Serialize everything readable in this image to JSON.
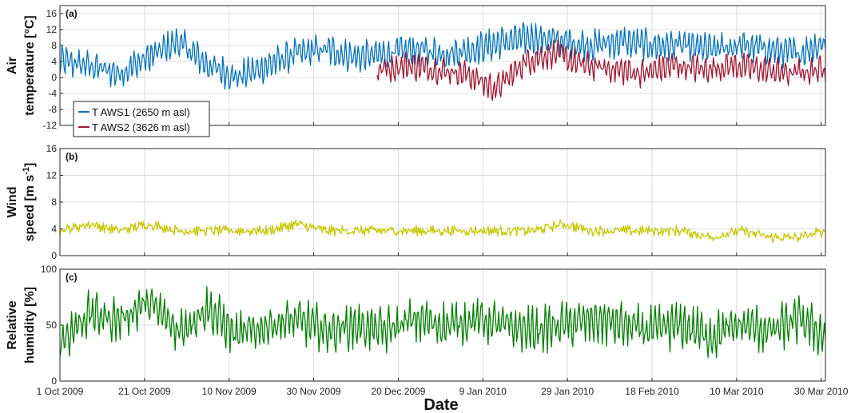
{
  "chart_data": [
    {
      "type": "line",
      "panel_label": "(a)",
      "ylabel": [
        "Air",
        "temperature [°C]"
      ],
      "ylim": [
        -12,
        18
      ],
      "yticks": [
        -12,
        -8,
        -4,
        0,
        4,
        8,
        12,
        16
      ],
      "grid": true,
      "legend_position": "bottom-left",
      "series": [
        {
          "name": "T AWS1 (2650 m asl)",
          "color": "#0072BD",
          "x": [
            "2009-10-01",
            "2009-10-08",
            "2009-10-15",
            "2009-10-22",
            "2009-10-29",
            "2009-11-05",
            "2009-11-12",
            "2009-11-19",
            "2009-11-26",
            "2009-12-03",
            "2009-12-10",
            "2009-12-17",
            "2009-12-24",
            "2009-12-31",
            "2010-01-07",
            "2010-01-14",
            "2010-01-21",
            "2010-01-28",
            "2010-02-04",
            "2010-02-11",
            "2010-02-18",
            "2010-02-25",
            "2010-03-04",
            "2010-03-11",
            "2010-03-18",
            "2010-03-25",
            "2010-03-31"
          ],
          "values": [
            4,
            3,
            1,
            5,
            9,
            3,
            0,
            3,
            6,
            7,
            5,
            6,
            7,
            6,
            7,
            9,
            10,
            9,
            8,
            9,
            8,
            8,
            7,
            8,
            7,
            6,
            9
          ]
        },
        {
          "name": "T AWS2 (3626 m asl)",
          "color": "#A2142F",
          "x": [
            "2009-12-15",
            "2009-12-22",
            "2009-12-29",
            "2010-01-05",
            "2010-01-12",
            "2010-01-19",
            "2010-01-26",
            "2010-02-02",
            "2010-02-09",
            "2010-02-16",
            "2010-02-23",
            "2010-03-02",
            "2010-03-09",
            "2010-03-16",
            "2010-03-23",
            "2010-03-31"
          ],
          "values": [
            2,
            3,
            2,
            1,
            -3,
            4,
            6,
            3,
            2,
            1,
            3,
            2,
            3,
            2,
            1,
            2
          ]
        }
      ]
    },
    {
      "type": "line",
      "panel_label": "(b)",
      "ylabel": [
        "Wind",
        "speed [m s",
        "-1",
        "]"
      ],
      "ylim": [
        0,
        16
      ],
      "yticks": [
        0,
        4,
        8,
        12,
        16
      ],
      "grid": true,
      "series": [
        {
          "color": "#C8C800",
          "x": [
            "2009-10-01",
            "2009-10-08",
            "2009-10-15",
            "2009-10-22",
            "2009-10-29",
            "2009-11-05",
            "2009-11-12",
            "2009-11-19",
            "2009-11-26",
            "2009-12-03",
            "2009-12-10",
            "2009-12-17",
            "2009-12-24",
            "2009-12-31",
            "2010-01-07",
            "2010-01-14",
            "2010-01-21",
            "2010-01-28",
            "2010-02-04",
            "2010-02-11",
            "2010-02-18",
            "2010-02-25",
            "2010-03-04",
            "2010-03-11",
            "2010-03-18",
            "2010-03-25",
            "2010-03-31"
          ],
          "values": [
            3,
            4,
            3,
            4,
            3,
            3,
            3,
            3,
            4,
            3,
            3,
            3,
            3,
            3,
            3,
            3,
            3,
            4,
            3,
            3,
            3,
            3,
            2,
            3,
            2,
            2,
            3
          ]
        }
      ]
    },
    {
      "type": "line",
      "panel_label": "(c)",
      "ylabel": [
        "Relative",
        "humidity [%]"
      ],
      "ylim": [
        0,
        100
      ],
      "yticks": [
        0,
        50,
        100
      ],
      "grid": true,
      "series": [
        {
          "color": "#008000",
          "x": [
            "2009-10-01",
            "2009-10-08",
            "2009-10-15",
            "2009-10-22",
            "2009-10-29",
            "2009-11-05",
            "2009-11-12",
            "2009-11-19",
            "2009-11-26",
            "2009-12-03",
            "2009-12-10",
            "2009-12-17",
            "2009-12-24",
            "2009-12-31",
            "2010-01-07",
            "2010-01-14",
            "2010-01-21",
            "2010-01-28",
            "2010-02-04",
            "2010-02-11",
            "2010-02-18",
            "2010-02-25",
            "2010-03-04",
            "2010-03-11",
            "2010-03-18",
            "2010-03-25",
            "2010-03-31"
          ],
          "values": [
            35,
            60,
            55,
            70,
            45,
            65,
            40,
            50,
            55,
            45,
            50,
            45,
            55,
            50,
            55,
            50,
            45,
            50,
            55,
            50,
            45,
            50,
            40,
            50,
            45,
            55,
            40
          ]
        }
      ]
    }
  ],
  "x_axis": {
    "label": "Date",
    "range": [
      "2009-10-01",
      "2010-03-31"
    ],
    "ticks": [
      {
        "date": "2009-10-01",
        "label": "1 Oct 2009"
      },
      {
        "date": "2009-10-21",
        "label": "21 Oct 2009"
      },
      {
        "date": "2009-11-10",
        "label": "10 Nov 2009"
      },
      {
        "date": "2009-11-30",
        "label": "30 Nov 2009"
      },
      {
        "date": "2009-12-20",
        "label": "20 Dec 2009"
      },
      {
        "date": "2010-01-09",
        "label": "9 Jan 2010"
      },
      {
        "date": "2010-01-29",
        "label": "29 Jan 2010"
      },
      {
        "date": "2010-02-18",
        "label": "18 Feb 2010"
      },
      {
        "date": "2010-03-10",
        "label": "10 Mar 2010"
      },
      {
        "date": "2010-03-30",
        "label": "30 Mar 2010"
      }
    ]
  }
}
